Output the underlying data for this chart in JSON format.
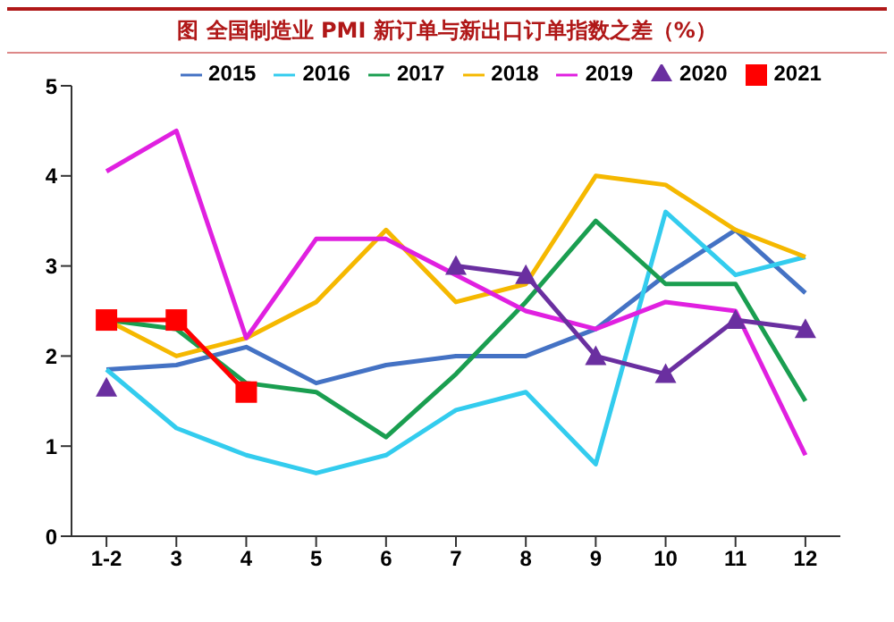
{
  "chart_data": {
    "type": "line",
    "title": "图  全国制造业 PMI 新订单与新出口订单指数之差（%）",
    "categories": [
      "1-2",
      "3",
      "4",
      "5",
      "6",
      "7",
      "8",
      "9",
      "10",
      "11",
      "12"
    ],
    "series": [
      {
        "name": "2015",
        "color": "#4472c4",
        "marker": "none",
        "values": [
          1.85,
          1.9,
          2.1,
          1.7,
          1.9,
          2.0,
          2.0,
          2.3,
          2.9,
          3.4,
          2.7
        ]
      },
      {
        "name": "2016",
        "color": "#33ccee",
        "marker": "none",
        "values": [
          1.85,
          1.2,
          0.9,
          0.7,
          0.9,
          1.4,
          1.6,
          0.8,
          3.6,
          2.9,
          3.1
        ]
      },
      {
        "name": "2017",
        "color": "#1a9e50",
        "marker": "none",
        "values": [
          2.4,
          2.3,
          1.7,
          1.6,
          1.1,
          1.8,
          2.6,
          3.5,
          2.8,
          2.8,
          1.5
        ]
      },
      {
        "name": "2018",
        "color": "#f5b800",
        "marker": "none",
        "values": [
          2.4,
          2.0,
          2.2,
          2.6,
          3.4,
          2.6,
          2.8,
          4.0,
          3.9,
          3.4,
          3.1
        ]
      },
      {
        "name": "2019",
        "color": "#e020e0",
        "marker": "none",
        "values": [
          4.05,
          4.5,
          2.2,
          3.3,
          3.3,
          2.9,
          2.5,
          2.3,
          2.6,
          2.5,
          0.9
        ]
      },
      {
        "name": "2020",
        "color": "#6a2fa0",
        "marker": "triangle",
        "values": [
          1.65,
          null,
          null,
          null,
          null,
          3.0,
          2.9,
          2.0,
          1.8,
          2.4,
          2.3
        ]
      },
      {
        "name": "2021",
        "color": "#ff0000",
        "marker": "square",
        "values": [
          2.4,
          2.4,
          1.6,
          null,
          null,
          null,
          null,
          null,
          null,
          null,
          null
        ]
      }
    ],
    "ylim": [
      0,
      5
    ],
    "yticks": [
      0,
      1,
      2,
      3,
      4,
      5
    ],
    "legend": "top",
    "line_style": "solid"
  }
}
